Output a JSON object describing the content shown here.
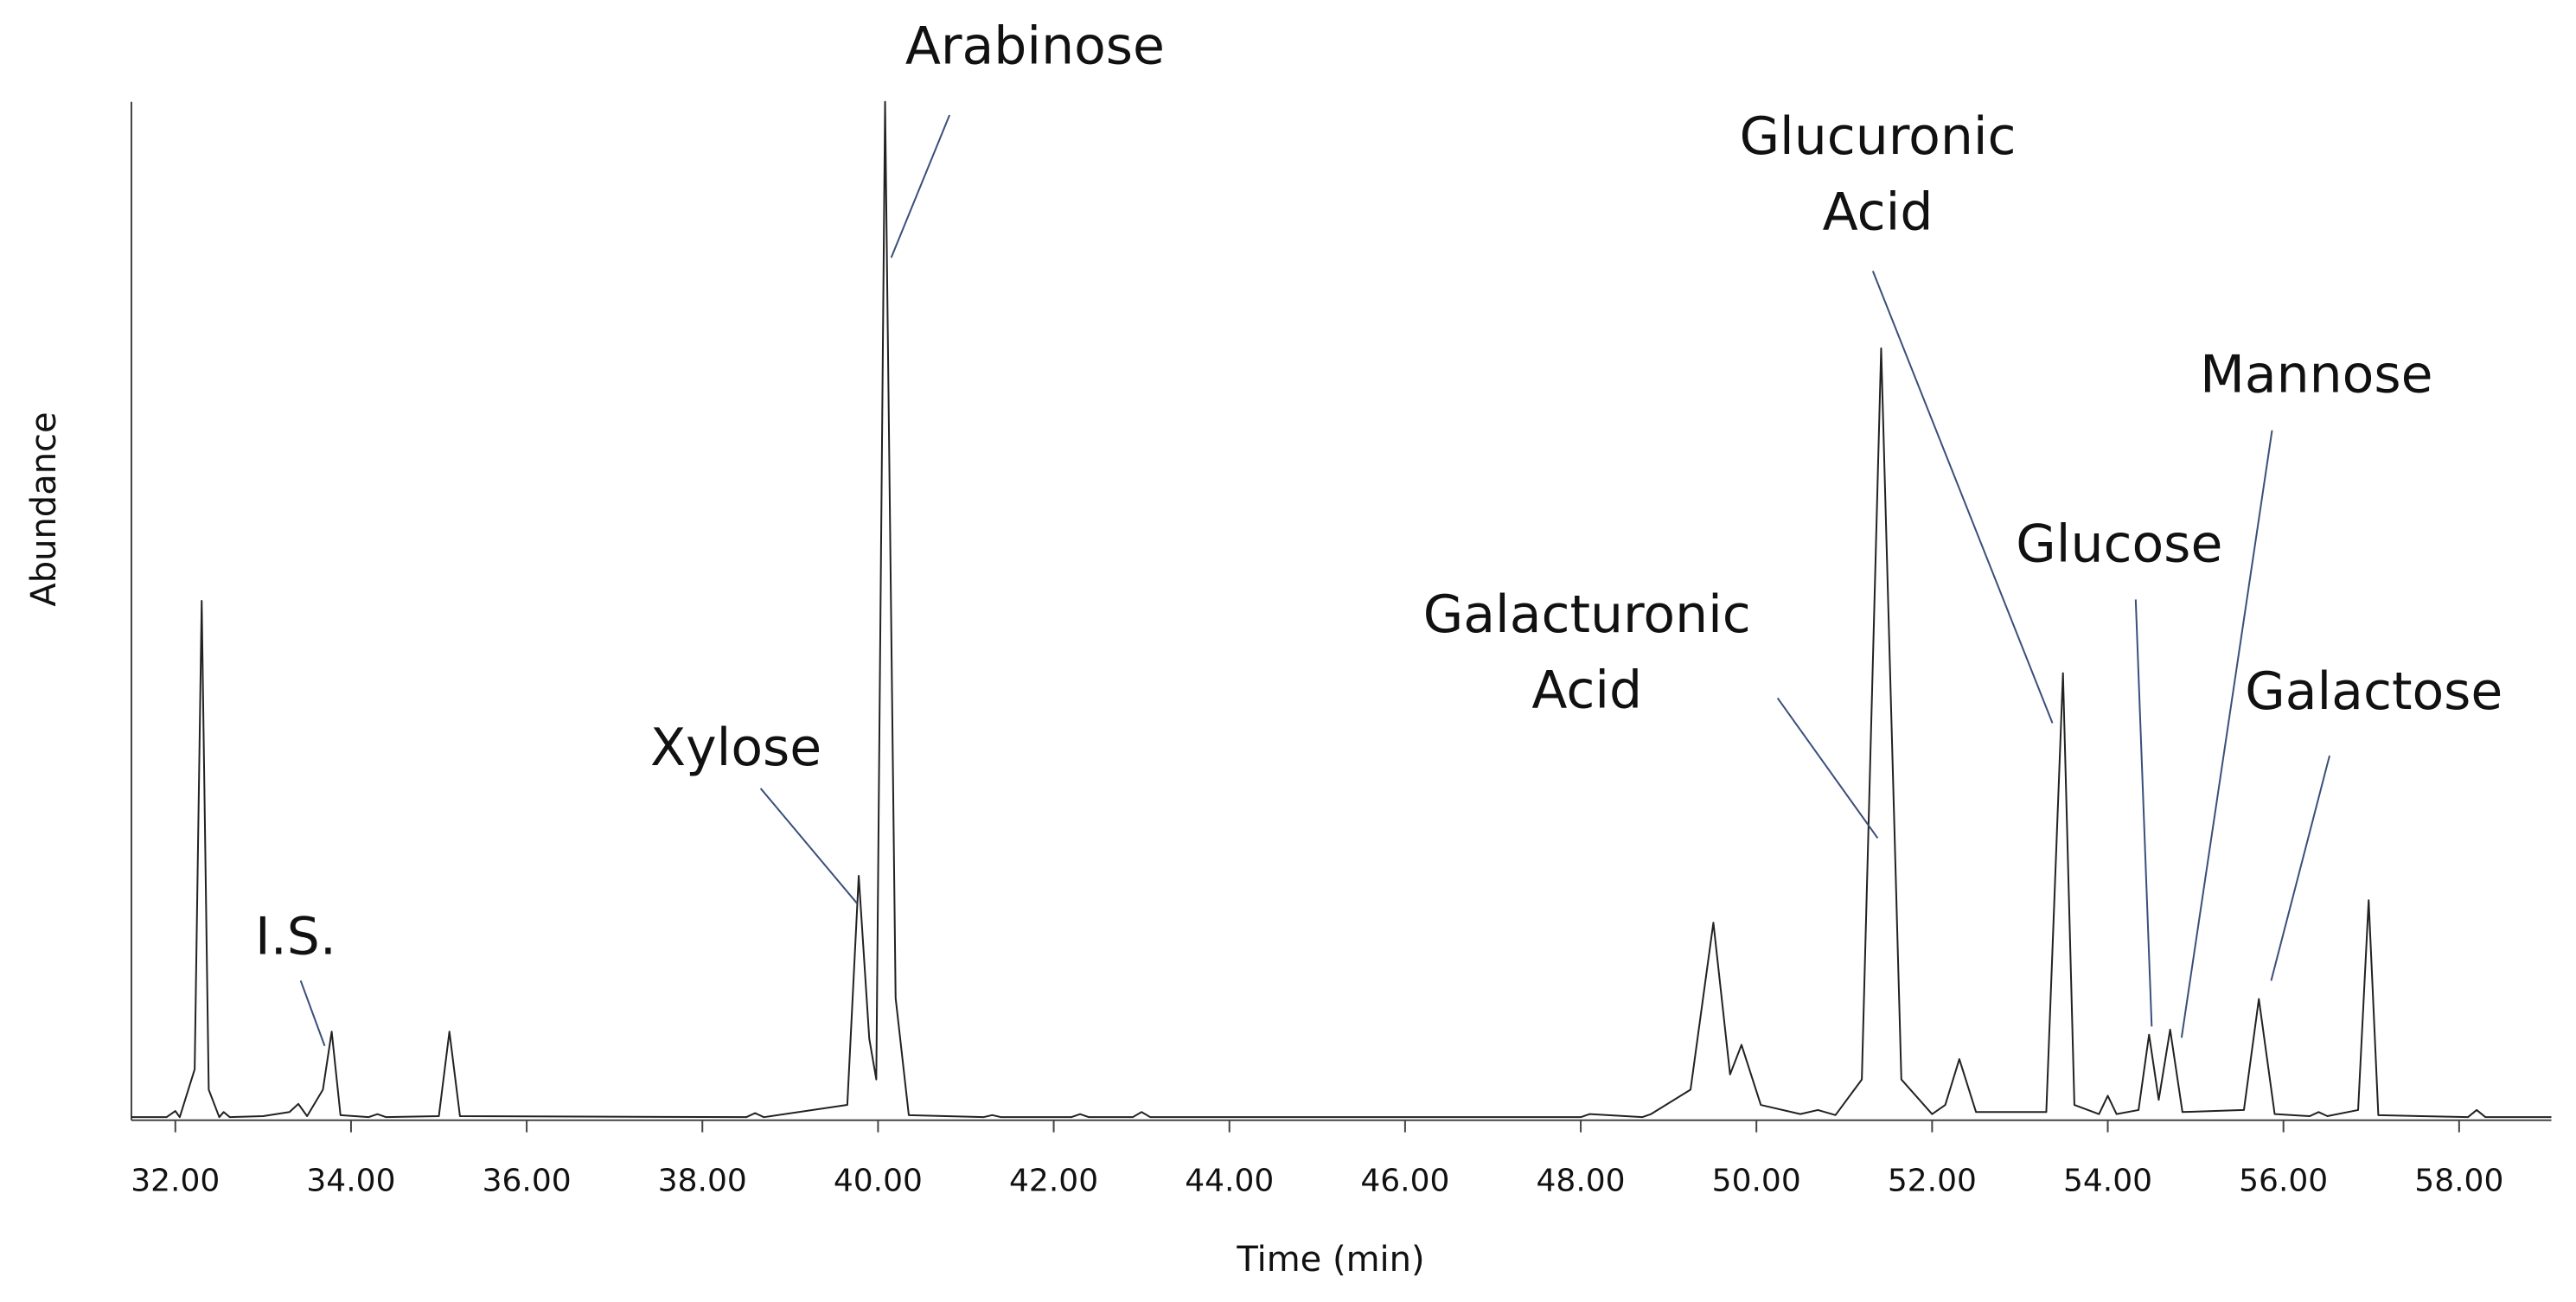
{
  "chart_data": {
    "type": "line",
    "xlabel": "Time  (min)",
    "ylabel": "Abundance",
    "xlim": [
      31.5,
      59.05
    ],
    "ylim": [
      0,
      100
    ],
    "xticks": [
      {
        "value": 32,
        "label": "32.00"
      },
      {
        "value": 34,
        "label": "34.00"
      },
      {
        "value": 36,
        "label": "36.00"
      },
      {
        "value": 38,
        "label": "38.00"
      },
      {
        "value": 40,
        "label": "40.00"
      },
      {
        "value": 42,
        "label": "42.00"
      },
      {
        "value": 44,
        "label": "44.00"
      },
      {
        "value": 46,
        "label": "46.00"
      },
      {
        "value": 48,
        "label": "48.00"
      },
      {
        "value": 50,
        "label": "50.00"
      },
      {
        "value": 52,
        "label": "52.00"
      },
      {
        "value": 54,
        "label": "54.00"
      },
      {
        "value": 56,
        "label": "56.00"
      },
      {
        "value": 58,
        "label": "58.00"
      }
    ],
    "series": [
      {
        "color": "#222222",
        "x": [
          31.5,
          31.9,
          32.0,
          32.05,
          32.22,
          32.3,
          32.38,
          32.5,
          32.55,
          32.62,
          33.0,
          33.3,
          33.4,
          33.5,
          33.68,
          33.78,
          33.88,
          34.2,
          34.3,
          34.4,
          35.0,
          35.12,
          35.24,
          38.5,
          38.6,
          38.7,
          39.65,
          39.78,
          39.9,
          39.98,
          40.08,
          40.2,
          40.35,
          41.2,
          41.3,
          41.4,
          42.2,
          42.3,
          42.4,
          42.9,
          43.0,
          43.1,
          48.0,
          48.1,
          48.7,
          48.8,
          49.25,
          49.51,
          49.7,
          49.83,
          50.05,
          50.5,
          50.7,
          50.9,
          51.2,
          51.42,
          51.65,
          52.0,
          52.15,
          52.31,
          52.5,
          53.3,
          53.49,
          53.62,
          53.9,
          54.0,
          54.1,
          54.35,
          54.47,
          54.58,
          54.71,
          54.85,
          55.55,
          55.72,
          55.9,
          56.3,
          56.4,
          56.5,
          56.85,
          56.97,
          57.08,
          58.1,
          58.2,
          58.3,
          59.05
        ],
        "values": [
          0.3,
          0.3,
          0.9,
          0.3,
          5,
          51,
          3,
          0.3,
          0.8,
          0.3,
          0.4,
          0.8,
          1.6,
          0.4,
          3,
          8.7,
          0.5,
          0.3,
          0.6,
          0.3,
          0.4,
          8.7,
          0.4,
          0.3,
          0.7,
          0.3,
          1.5,
          24,
          8,
          4,
          100,
          12,
          0.5,
          0.3,
          0.5,
          0.3,
          0.3,
          0.6,
          0.3,
          0.3,
          0.8,
          0.3,
          0.3,
          0.6,
          0.3,
          0.6,
          3,
          19.4,
          4.5,
          7.4,
          1.5,
          0.6,
          1,
          0.5,
          4,
          75.8,
          4,
          0.6,
          1.5,
          6,
          0.8,
          0.8,
          43.9,
          1.5,
          0.6,
          2.4,
          0.6,
          1,
          8.4,
          2,
          8.9,
          0.8,
          1,
          11.9,
          0.6,
          0.4,
          0.8,
          0.4,
          1,
          21.6,
          0.5,
          0.3,
          1,
          0.3,
          0.3
        ]
      }
    ],
    "annotations": [
      {
        "text": [
          "I.S."
        ],
        "x": 33.7,
        "y": 7.3
      },
      {
        "text": [
          "Xylose"
        ],
        "x": 39.76,
        "y": 21.3
      },
      {
        "text": [
          "Arabinose"
        ],
        "x": 40.15,
        "y": 84.7
      },
      {
        "text": [
          "Galacturonic",
          "Acid"
        ],
        "x": 51.38,
        "y": 27.7
      },
      {
        "text": [
          "Glucuronic",
          "Acid"
        ],
        "x": 53.37,
        "y": 39
      },
      {
        "text": [
          "Glucose"
        ],
        "x": 54.5,
        "y": 9.2
      },
      {
        "text": [
          "Mannose"
        ],
        "x": 54.84,
        "y": 8.1
      },
      {
        "text": [
          "Galactose"
        ],
        "x": 55.86,
        "y": 13.7
      }
    ]
  }
}
